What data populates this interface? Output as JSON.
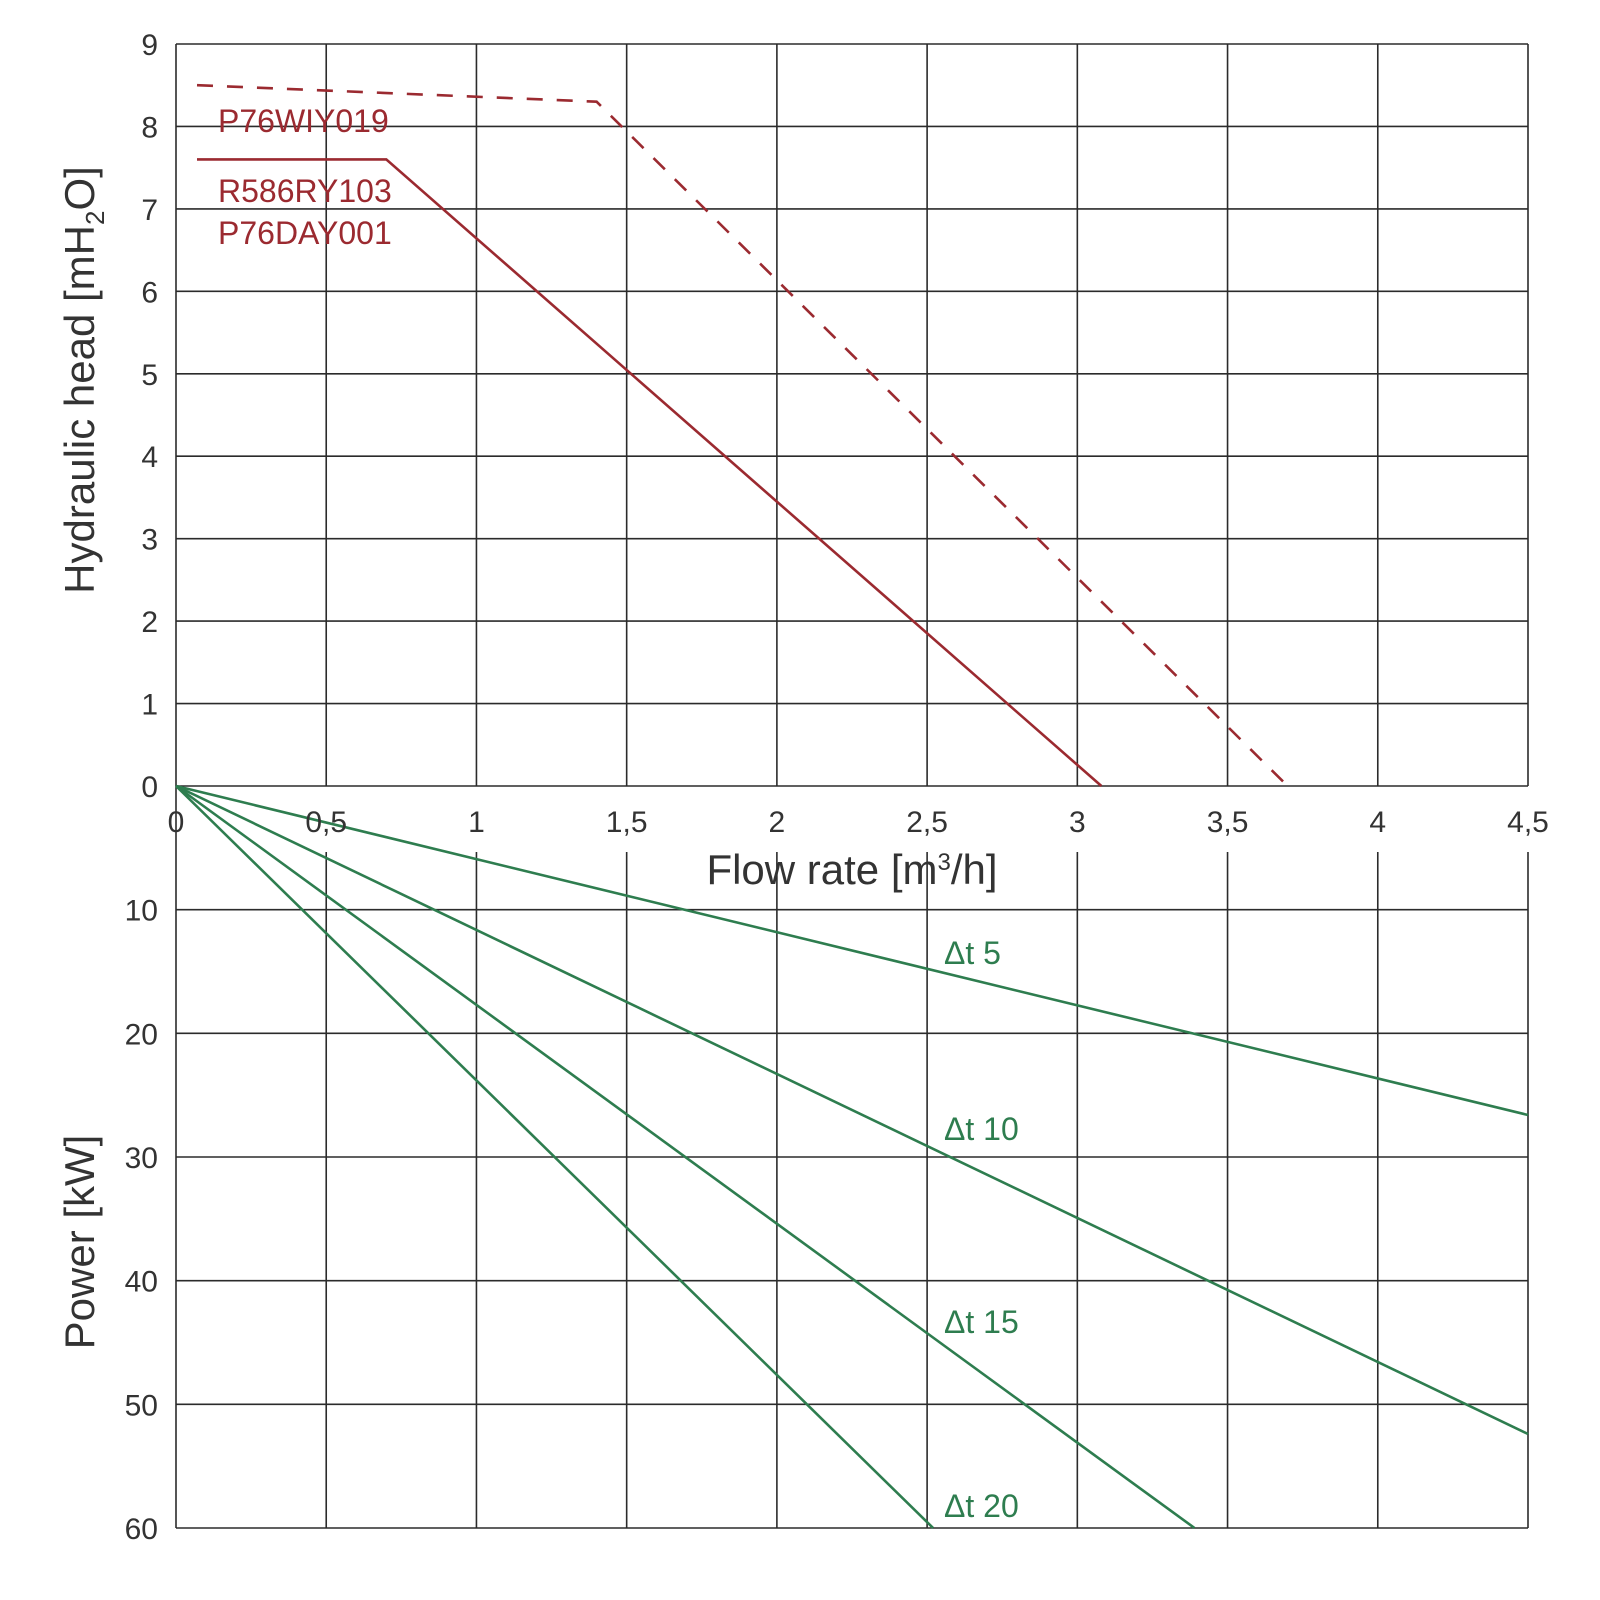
{
  "chart_data": [
    {
      "type": "line",
      "xlabel": "Flow rate [m³/h]",
      "xlabel_parts": {
        "main": "Flow rate [m",
        "sup": "3",
        "tail": "/h]"
      },
      "ylabel": "Hydraulic head [mH₂O]",
      "ylabel_parts": {
        "main": "Hydraulic head [mH",
        "sub": "2",
        "tail": "O]"
      },
      "xlim": [
        0,
        4.5
      ],
      "ylim": [
        0,
        9
      ],
      "x_ticks": [
        "0",
        "0,5",
        "1",
        "1,5",
        "2",
        "2,5",
        "3",
        "3,5",
        "4",
        "4,5"
      ],
      "y_ticks": [
        "0",
        "1",
        "2",
        "3",
        "4",
        "5",
        "6",
        "7",
        "8",
        "9"
      ],
      "grid": true,
      "series": [
        {
          "name": "P76WIY019",
          "style": "dashed",
          "color": "#9b2a30",
          "x": [
            0.07,
            1.4,
            3.7
          ],
          "y": [
            8.5,
            8.3,
            0
          ]
        },
        {
          "name": "R586RY103 / P76DAY001",
          "labels": [
            "R586RY103",
            "P76DAY001"
          ],
          "style": "solid",
          "color": "#9b2a30",
          "x": [
            0.07,
            0.7,
            3.08
          ],
          "y": [
            7.6,
            7.6,
            0
          ]
        }
      ]
    },
    {
      "type": "line",
      "ylabel": "Power [kW]",
      "xlim": [
        0,
        4.5
      ],
      "ylim": [
        0,
        60
      ],
      "y_inverted": true,
      "y_ticks": [
        "10",
        "20",
        "30",
        "40",
        "50",
        "60"
      ],
      "grid": true,
      "series": [
        {
          "name": "Δt 5",
          "color": "#2e7d4f",
          "x": [
            0,
            4.5
          ],
          "y": [
            0,
            26.6
          ]
        },
        {
          "name": "Δt 10",
          "color": "#2e7d4f",
          "x": [
            0,
            4.5
          ],
          "y": [
            0,
            52.4
          ]
        },
        {
          "name": "Δt 15",
          "color": "#2e7d4f",
          "x": [
            0,
            3.39
          ],
          "y": [
            0,
            60
          ]
        },
        {
          "name": "Δt 20",
          "color": "#2e7d4f",
          "x": [
            0,
            2.52
          ],
          "y": [
            0,
            60
          ]
        }
      ]
    }
  ]
}
